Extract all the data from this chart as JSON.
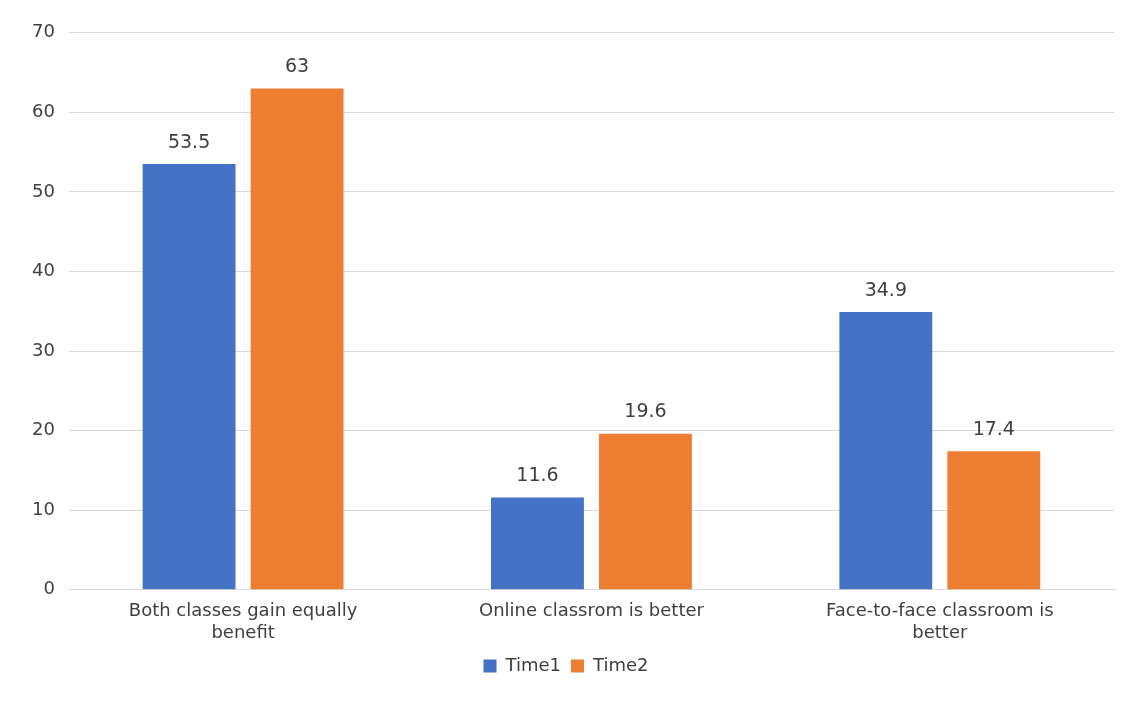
{
  "chart_data": {
    "type": "bar",
    "categories": [
      "Both classes gain equally benefit",
      "Online classrom is better",
      "Face-to-face classroom is better"
    ],
    "series": [
      {
        "name": "Time1",
        "color": "#4472c4",
        "values": [
          53.5,
          11.6,
          34.9
        ]
      },
      {
        "name": "Time2",
        "color": "#ed7d31",
        "values": [
          63,
          19.6,
          17.4
        ]
      }
    ],
    "ylim": [
      0,
      70
    ],
    "yticks": [
      0,
      10,
      20,
      30,
      40,
      50,
      60,
      70
    ],
    "grid": "y",
    "legend": "bottom",
    "data_labels": true
  }
}
